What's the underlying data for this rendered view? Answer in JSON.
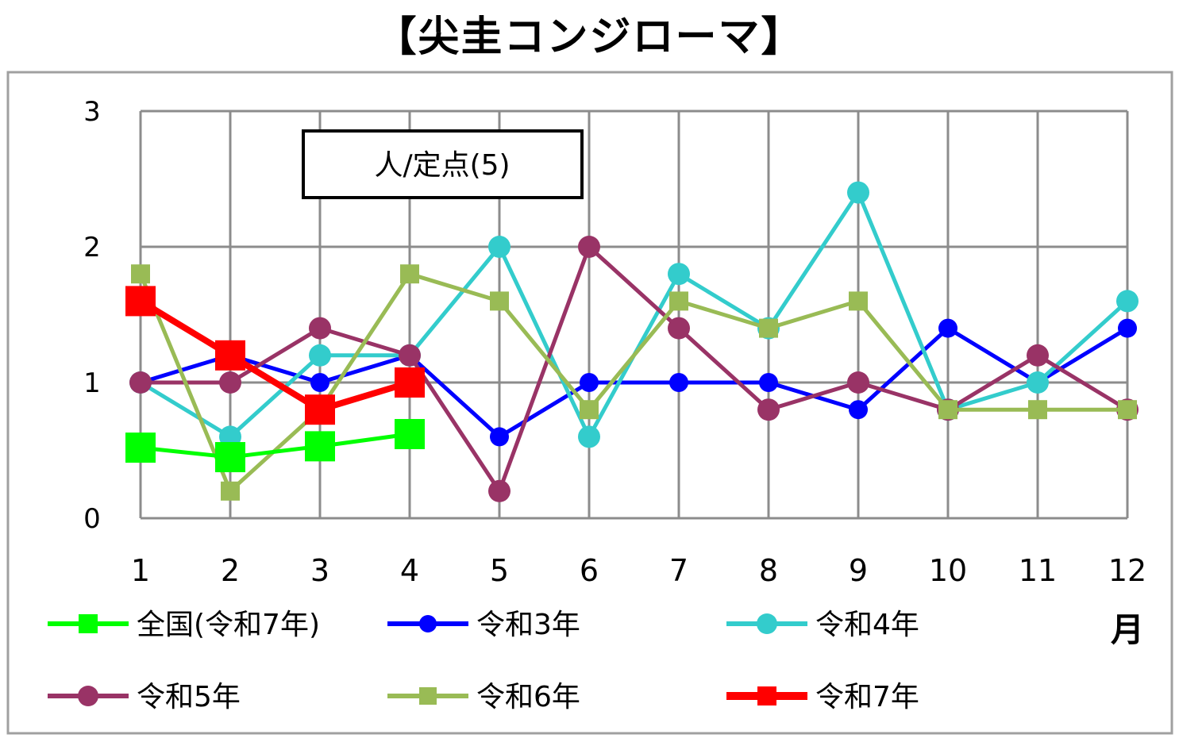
{
  "chart_data": {
    "type": "line",
    "title": "【尖圭コンジローマ】",
    "unit_label": "人/定点(5)",
    "xlabel": "月",
    "ylabel": "",
    "x": [
      1,
      2,
      3,
      4,
      5,
      6,
      7,
      8,
      9,
      10,
      11,
      12
    ],
    "ylim": [
      0,
      3
    ],
    "yticks": [
      0,
      1,
      2,
      3
    ],
    "grid": true,
    "legend_position": "bottom",
    "series": [
      {
        "name": "全国(令和7年)",
        "color": "#00ff00",
        "marker": "square",
        "values": [
          0.52,
          0.45,
          0.53,
          0.62,
          null,
          null,
          null,
          null,
          null,
          null,
          null,
          null
        ]
      },
      {
        "name": "令和3年",
        "color": "#0000ff",
        "marker": "circle",
        "values": [
          1.0,
          1.2,
          1.0,
          1.2,
          0.6,
          1.0,
          1.0,
          1.0,
          0.8,
          1.4,
          1.0,
          1.4
        ]
      },
      {
        "name": "令和4年",
        "color": "#33cccc",
        "marker": "circle",
        "values": [
          1.0,
          0.6,
          1.2,
          1.2,
          2.0,
          0.6,
          1.8,
          1.4,
          2.4,
          0.8,
          1.0,
          1.6
        ]
      },
      {
        "name": "令和5年",
        "color": "#993366",
        "marker": "circle",
        "values": [
          1.0,
          1.0,
          1.4,
          1.2,
          0.2,
          2.0,
          1.4,
          0.8,
          1.0,
          0.8,
          1.2,
          0.8
        ]
      },
      {
        "name": "令和6年",
        "color": "#99bb55",
        "marker": "square",
        "values": [
          1.8,
          0.2,
          0.8,
          1.8,
          1.6,
          0.8,
          1.6,
          1.4,
          1.6,
          0.8,
          0.8,
          0.8
        ]
      },
      {
        "name": "令和7年",
        "color": "#ff0000",
        "marker": "square",
        "values": [
          1.6,
          1.2,
          0.8,
          1.0,
          null,
          null,
          null,
          null,
          null,
          null,
          null,
          null
        ]
      }
    ]
  }
}
